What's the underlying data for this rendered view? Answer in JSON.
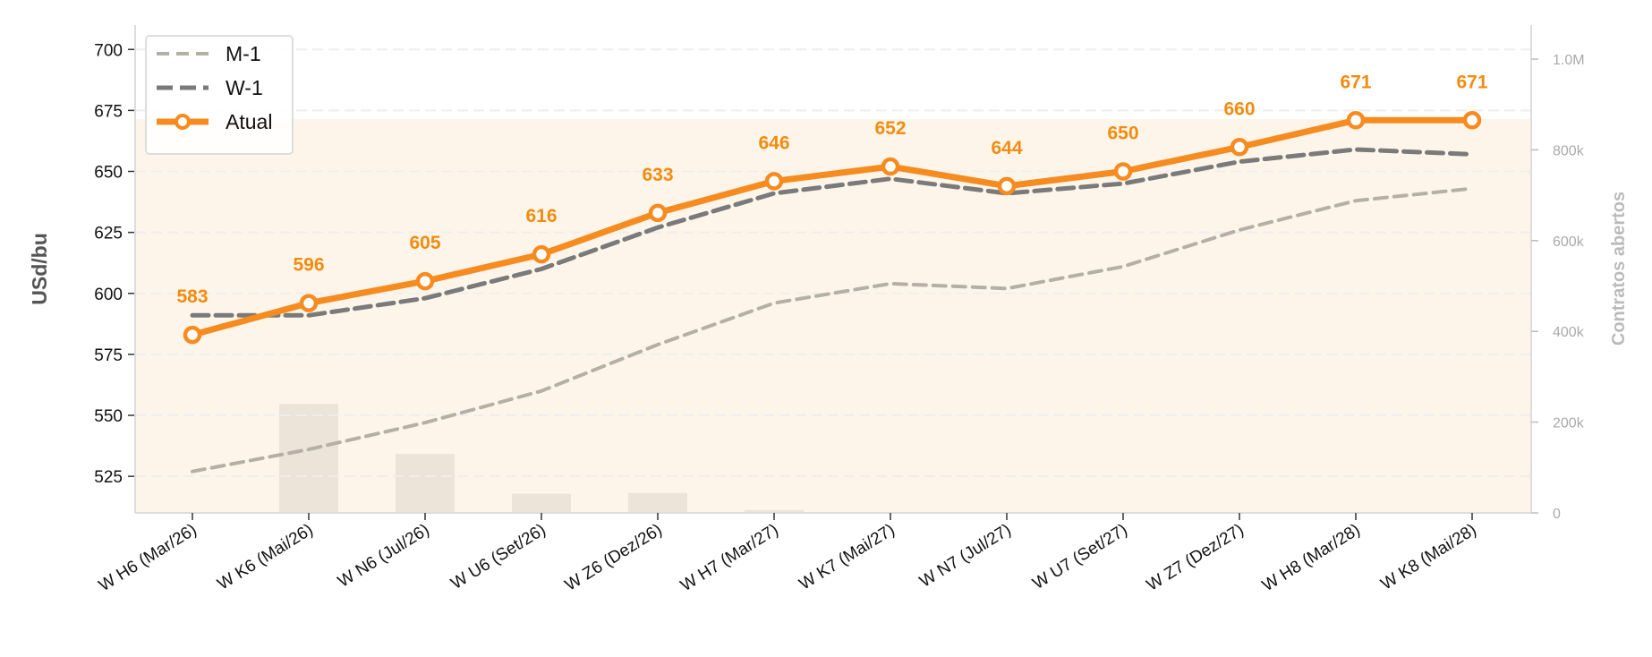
{
  "colors": {
    "atual": "#f68b1f",
    "w1": "#7a7a7a",
    "m1": "#b5b0a6",
    "oi_area": "#fdf5ea",
    "oi_bar": "#ece3d9",
    "grid": "#eeeeee",
    "axis": "#dddddd"
  },
  "chart_data": {
    "type": "line",
    "title": "",
    "xlabel": "",
    "ylabel": "USd/bu",
    "y2label": "Contratos abertos",
    "ylim": [
      510,
      710
    ],
    "y2lim": [
      0,
      1075000
    ],
    "yticks": [
      525,
      550,
      575,
      600,
      625,
      650,
      675,
      700
    ],
    "y2ticks": [
      0,
      200000,
      400000,
      600000,
      800000,
      1000000
    ],
    "y2ticklabels": [
      "0",
      "200k",
      "400k",
      "600k",
      "800k",
      "1.0M"
    ],
    "grid": true,
    "legend_position": "top-left",
    "categories": [
      "W H6 (Mar/26)",
      "W K6 (Mai/26)",
      "W N6 (Jul/26)",
      "W U6 (Set/26)",
      "W Z6 (Dez/26)",
      "W H7 (Mar/27)",
      "W K7 (Mai/27)",
      "W N7 (Jul/27)",
      "W U7 (Set/27)",
      "W Z7 (Dez/27)",
      "W H8 (Mar/28)",
      "W K8 (Mai/28)"
    ],
    "series": [
      {
        "name": "M-1",
        "style": "dashed-thin",
        "values": [
          527,
          536,
          547,
          560,
          579,
          596,
          604,
          602,
          611,
          626,
          638,
          643
        ]
      },
      {
        "name": "W-1",
        "style": "dashed",
        "values": [
          591,
          591,
          598,
          610,
          627,
          641,
          647,
          641,
          645,
          654,
          659,
          657
        ]
      },
      {
        "name": "Atual",
        "style": "solid-markers",
        "values": [
          583,
          596,
          605,
          616,
          633,
          646,
          652,
          644,
          650,
          660,
          671,
          671
        ]
      }
    ],
    "data_labels": [
      "583",
      "596",
      "605",
      "616",
      "633",
      "646",
      "652",
      "644",
      "650",
      "660",
      "671",
      "671"
    ],
    "open_interest_area": 868000,
    "open_interest_bars": [
      0,
      240000,
      130000,
      42000,
      44000,
      6000,
      0,
      0,
      0,
      0,
      0,
      0
    ]
  }
}
